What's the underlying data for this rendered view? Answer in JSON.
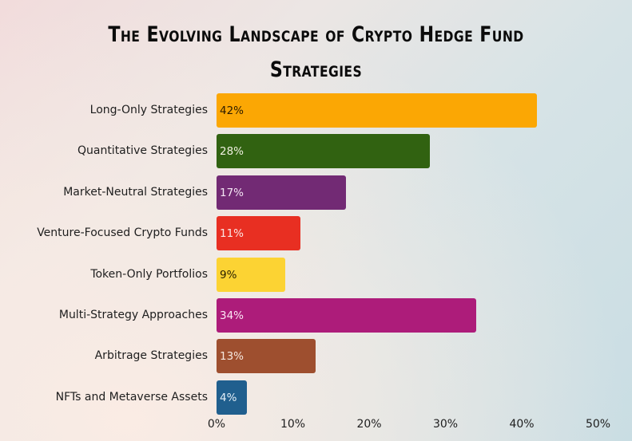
{
  "title": {
    "line1": "The Evolving Landscape of Crypto Hedge Fund",
    "line2": "Strategies"
  },
  "chart_data": {
    "type": "bar",
    "orientation": "horizontal",
    "title": "The Evolving Landscape of Crypto Hedge Fund Strategies",
    "xlabel": "",
    "ylabel": "",
    "categories": [
      "Long-Only Strategies",
      "Quantitative Strategies",
      "Market-Neutral Strategies",
      "Venture-Focused Crypto Funds",
      "Token-Only Portfolios",
      "Multi-Strategy Approaches",
      "Arbitrage Strategies",
      "NFTs and Metaverse Assets"
    ],
    "values": [
      42,
      28,
      17,
      11,
      9,
      34,
      13,
      4
    ],
    "value_labels": [
      "42%",
      "28%",
      "17%",
      "11%",
      "9%",
      "34%",
      "13%",
      "4%"
    ],
    "colors": [
      "#fba704",
      "#316211",
      "#722a74",
      "#e82f22",
      "#fcd333",
      "#ad1c7a",
      "#9e4f2f",
      "#205f8e"
    ],
    "label_colors": [
      "#2a1a00",
      "#f0f0e0",
      "#f4e6f4",
      "#fbe6e4",
      "#2a2000",
      "#fbe6f4",
      "#f6e8e0",
      "#e6f0f8"
    ],
    "xlim": [
      0,
      50
    ],
    "xticks": [
      "0%",
      "10%",
      "20%",
      "30%",
      "40%",
      "50%"
    ],
    "grid": false,
    "legend": "none"
  }
}
